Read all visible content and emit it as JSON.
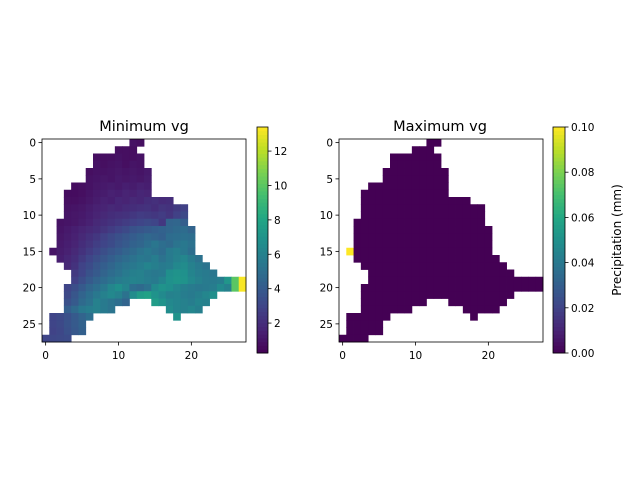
{
  "chart_data": [
    {
      "type": "heatmap",
      "title": "Minimum vg",
      "colormap": "viridis",
      "xlim": [
        -0.5,
        27.5
      ],
      "ylim": [
        27.5,
        -0.5
      ],
      "xticks": [
        0,
        10,
        20
      ],
      "yticks": [
        0,
        5,
        10,
        15,
        20,
        25
      ],
      "colorbar": {
        "range": [
          0.26,
          13.4
        ],
        "ticks": [
          2,
          4,
          6,
          8,
          10,
          12
        ],
        "label": ""
      },
      "rows": [
        [
          {
            "start": 12,
            "values": [
              0.9,
              0.8
            ]
          }
        ],
        [
          {
            "start": 10,
            "values": [
              0.8,
              0.8,
              0.8
            ]
          }
        ],
        [
          {
            "start": 7,
            "values": [
              0.8,
              0.8,
              0.8,
              0.9,
              0.8,
              0.8,
              0.9
            ]
          }
        ],
        [
          {
            "start": 7,
            "values": [
              0.9,
              0.8,
              0.9,
              1.0,
              0.8,
              1.0,
              0.9
            ]
          }
        ],
        [
          {
            "start": 6,
            "values": [
              0.8,
              0.9,
              0.9,
              1.0,
              1.1,
              1.0,
              1.1,
              1.0,
              1.2
            ]
          }
        ],
        [
          {
            "start": 6,
            "values": [
              0.9,
              1.0,
              1.1,
              1.0,
              1.2,
              1.1,
              1.2,
              1.1,
              1.3
            ]
          }
        ],
        [
          {
            "start": 4,
            "values": [
              0.7,
              0.8,
              0.9,
              1.1,
              1.2,
              1.3,
              1.2,
              1.4,
              1.3,
              1.5,
              1.4
            ]
          }
        ],
        [
          {
            "start": 3,
            "values": [
              0.7,
              0.7,
              0.8,
              1.0,
              1.2,
              1.3,
              1.5,
              1.4,
              1.6,
              1.5,
              1.7,
              1.6
            ]
          }
        ],
        [
          {
            "start": 3,
            "values": [
              0.8,
              0.8,
              0.9,
              1.1,
              1.3,
              1.5,
              1.4,
              1.7,
              1.6,
              1.8,
              1.7,
              2.0,
              2.1,
              1.9,
              2.0
            ]
          }
        ],
        [
          {
            "start": 3,
            "values": [
              0.9,
              1.0,
              1.1,
              1.3,
              1.5,
              1.6,
              1.8,
              1.7,
              1.9,
              2.0,
              2.1,
              2.2,
              2.0,
              2.3,
              2.2,
              2.5,
              2.8
            ]
          }
        ],
        [
          {
            "start": 3,
            "values": [
              1.0,
              1.1,
              1.2,
              1.4,
              1.6,
              1.8,
              2.0,
              2.1,
              2.2,
              2.4,
              2.6,
              2.5,
              2.4,
              2.6,
              2.3,
              2.8,
              3.2
            ]
          }
        ],
        [
          {
            "start": 2,
            "values": [
              0.9,
              1.0,
              1.1,
              1.3,
              1.5,
              1.8,
              2.0,
              2.2,
              2.4,
              2.6,
              2.8,
              3.0,
              3.2,
              3.0,
              2.4,
              4.5,
              4.6,
              4.2
            ]
          }
        ],
        [
          {
            "start": 2,
            "values": [
              1.0,
              1.2,
              1.4,
              1.6,
              1.8,
              2.0,
              2.3,
              2.6,
              2.9,
              3.2,
              3.6,
              3.8,
              4.0,
              4.2,
              4.4,
              4.6,
              4.8,
              4.9,
              4.5
            ]
          }
        ],
        [
          {
            "start": 2,
            "values": [
              1.1,
              1.3,
              1.5,
              1.8,
              2.1,
              2.4,
              2.8,
              3.2,
              3.5,
              3.8,
              4.1,
              4.4,
              4.7,
              4.5,
              4.3,
              4.9,
              5.0,
              5.1,
              5.0
            ]
          }
        ],
        [
          {
            "start": 2,
            "values": [
              1.2,
              1.4,
              1.6,
              2.0,
              2.3,
              2.7,
              3.0,
              3.3,
              3.7,
              4.0,
              4.4,
              4.6,
              5.0,
              5.4,
              5.0,
              4.8,
              5.3,
              5.5,
              5.2
            ]
          }
        ],
        [
          {
            "start": 1,
            "values": [
              1.0,
              1.3,
              1.5,
              1.8,
              2.2,
              2.6,
              3.0,
              3.4,
              3.8,
              4.1,
              4.5,
              4.8,
              5.2,
              5.5,
              5.2,
              4.9,
              5.6,
              5.9,
              5.5,
              5.0
            ]
          }
        ],
        [
          {
            "start": 2,
            "values": [
              1.4,
              1.7,
              2.0,
              2.5,
              3.0,
              3.4,
              3.8,
              4.2,
              4.6,
              4.9,
              5.2,
              5.5,
              5.4,
              5.8,
              5.2,
              5.6,
              6.0,
              6.3,
              5.7,
              5.2
            ]
          }
        ],
        [
          {
            "start": 3,
            "values": [
              1.8,
              2.2,
              2.9,
              3.3,
              3.8,
              4.2,
              4.6,
              5.0,
              5.3,
              5.5,
              5.8,
              6.2,
              5.9,
              5.6,
              5.8,
              6.4,
              6.6,
              6.0,
              5.6,
              5.3
            ]
          }
        ],
        [
          {
            "start": 4,
            "values": [
              2.5,
              3.0,
              3.6,
              4.0,
              4.5,
              4.9,
              5.2,
              5.6,
              5.9,
              6.0,
              5.7,
              5.5,
              5.6,
              6.8,
              7.0,
              6.9,
              6.2,
              5.8,
              5.6,
              5.4
            ]
          }
        ],
        [
          {
            "start": 4,
            "values": [
              2.8,
              3.4,
              4.0,
              4.5,
              4.9,
              5.3,
              5.7,
              5.9,
              6.1,
              6.0,
              5.8,
              5.6,
              6.2,
              6.9,
              7.1,
              7.0,
              6.4,
              6.0,
              5.7,
              5.6,
              5.8,
              7.2,
              10.0,
              13.3
            ]
          }
        ],
        [
          {
            "start": 3,
            "values": [
              3.0,
              3.4,
              4.0,
              4.6,
              5.0,
              5.5,
              6.3,
              6.8,
              6.2,
              5.0,
              4.8,
              5.2,
              6.5,
              7.0,
              6.8,
              6.3,
              5.9,
              5.7,
              5.5,
              5.6,
              5.8,
              6.5,
              6.0,
              10.0,
              13.3
            ]
          }
        ],
        [
          {
            "start": 3,
            "values": [
              3.2,
              3.8,
              4.5,
              5.0,
              5.5,
              6.0,
              6.4,
              6.0,
              5.2,
              6.6,
              7.5,
              7.8,
              7.0,
              6.5,
              6.0,
              6.1,
              5.8,
              5.6,
              5.9,
              6.3,
              6.8
            ]
          }
        ],
        [
          {
            "start": 3,
            "values": [
              3.5,
              4.0,
              4.8,
              5.2,
              6.0,
              5.6,
              5.3,
              5.0,
              4.5
            ]
          },
          {
            "start": 15,
            "values": [
              7.5,
              7.0,
              6.4,
              6.2,
              6.0,
              5.8,
              6.2,
              6.0
            ]
          }
        ],
        [
          {
            "start": 3,
            "values": [
              4.2,
              4.8,
              5.5,
              5.8,
              6.0,
              5.6,
              5.3
            ]
          },
          {
            "start": 17,
            "values": [
              6.6,
              6.2,
              6.0,
              6.3,
              5.9
            ]
          }
        ],
        [
          {
            "start": 1,
            "values": [
              3.0,
              3.2,
              3.5,
              4.0,
              4.5,
              5.0
            ]
          },
          {
            "start": 18,
            "values": [
              7.0
            ]
          }
        ],
        [
          {
            "start": 1,
            "values": [
              3.0,
              3.2,
              3.6,
              4.0,
              4.4
            ]
          }
        ],
        [
          {
            "start": 1,
            "values": [
              2.9,
              3.1,
              3.5,
              3.9,
              4.3
            ]
          }
        ],
        [
          {
            "start": 0,
            "values": [
              3.0,
              3.1,
              3.2,
              3.3
            ]
          }
        ]
      ]
    },
    {
      "type": "heatmap",
      "title": "Maximum vg",
      "colormap": "viridis",
      "xlim": [
        -0.5,
        27.5
      ],
      "ylim": [
        27.5,
        -0.5
      ],
      "xticks": [
        0,
        10,
        20
      ],
      "yticks": [
        0,
        5,
        10,
        15,
        20,
        25
      ],
      "colorbar": {
        "range": [
          0.0,
          0.1
        ],
        "ticks": [
          "0.00",
          "0.02",
          "0.04",
          "0.06",
          "0.08",
          "0.10"
        ],
        "label": "Precipitation (mm)"
      },
      "fill_value": 0.0,
      "row_spans": [
        [
          [
            12,
            13
          ]
        ],
        [
          [
            10,
            12
          ]
        ],
        [
          [
            7,
            13
          ]
        ],
        [
          [
            7,
            13
          ]
        ],
        [
          [
            6,
            14
          ]
        ],
        [
          [
            6,
            14
          ]
        ],
        [
          [
            4,
            14
          ]
        ],
        [
          [
            3,
            14
          ]
        ],
        [
          [
            3,
            17
          ]
        ],
        [
          [
            3,
            19
          ]
        ],
        [
          [
            3,
            19
          ]
        ],
        [
          [
            2,
            19
          ]
        ],
        [
          [
            2,
            20
          ]
        ],
        [
          [
            2,
            20
          ]
        ],
        [
          [
            2,
            20
          ]
        ],
        [
          [
            1,
            20
          ]
        ],
        [
          [
            2,
            21
          ]
        ],
        [
          [
            3,
            22
          ]
        ],
        [
          [
            4,
            23
          ]
        ],
        [
          [
            4,
            27
          ]
        ],
        [
          [
            3,
            27
          ]
        ],
        [
          [
            3,
            23
          ]
        ],
        [
          [
            3,
            11
          ],
          [
            15,
            22
          ]
        ],
        [
          [
            3,
            9
          ],
          [
            17,
            21
          ]
        ],
        [
          [
            1,
            6
          ],
          [
            18,
            18
          ]
        ],
        [
          [
            1,
            5
          ]
        ],
        [
          [
            1,
            5
          ]
        ],
        [
          [
            0,
            3
          ]
        ]
      ],
      "exceptions": [
        {
          "row": 15,
          "col": 1,
          "value": 0.1
        }
      ]
    }
  ]
}
